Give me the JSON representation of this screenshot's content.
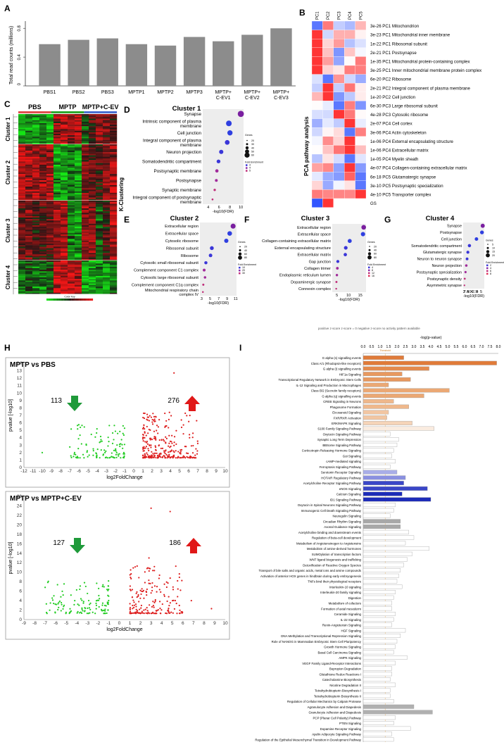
{
  "panel_labels": {
    "A": "A",
    "B": "B",
    "C": "C",
    "D": "D",
    "E": "E",
    "F": "F",
    "G": "G",
    "H": "H",
    "I": "I"
  },
  "panel_a": {
    "ylabel": "Total read counts (millions)",
    "yticks": [
      "0",
      "0.4",
      "0.8"
    ],
    "bars": [
      {
        "label": "PBS1",
        "value": 0.58
      },
      {
        "label": "PBS2",
        "value": 0.64
      },
      {
        "label": "PBS3",
        "value": 0.66
      },
      {
        "label": "MPTP1",
        "value": 0.58
      },
      {
        "label": "MPTP2",
        "value": 0.56
      },
      {
        "label": "MPTP3",
        "value": 0.68
      },
      {
        "label": "MPTP+\nC-EV1",
        "value": 0.62
      },
      {
        "label": "MPTP+\nC-EV2",
        "value": 0.71
      },
      {
        "label": "MPTP+\nC-EV3",
        "value": 0.8
      }
    ]
  },
  "panel_b": {
    "columns": [
      "PC1",
      "PC2",
      "PC3",
      "PC4",
      "PC5"
    ],
    "side_label": "PCA pathway analysis",
    "rows": [
      {
        "label": "3e-26 PC1 Mitochondrion",
        "pc": 0
      },
      {
        "label": "3e-23 PC1 Mitochondrial inner membrane",
        "pc": 0
      },
      {
        "label": "1e-22 PC1 Ribosomal subunit",
        "pc": 0
      },
      {
        "label": "2e-21 PC1 Postsynapse",
        "pc": 0
      },
      {
        "label": "1e-35 PC1 Mitochondrial protein-containing complex",
        "pc": 0
      },
      {
        "label": "3e-25 PC1 Inner mitochondrial membrane protein complex",
        "pc": 0
      },
      {
        "label": "6e-20 PC2 Ribosome",
        "pc": 1
      },
      {
        "label": "2e-21 PC2 Integral component of plasma membrane",
        "pc": 1
      },
      {
        "label": "1e-20 PC2 Cell junction",
        "pc": 1
      },
      {
        "label": "6e-30 PC3 Large ribosomal subunit",
        "pc": 2
      },
      {
        "label": "4e-28 PC3 Cytosolic ribosome",
        "pc": 2
      },
      {
        "label": "2e-07 PC4 Cell cortex",
        "pc": 3
      },
      {
        "label": "3e-06 PC4 Actin cytoskeleton",
        "pc": 3
      },
      {
        "label": "1e-06 PC4 External encapsulating structure",
        "pc": 3
      },
      {
        "label": "1e-06 PC4 Extracellular matrix",
        "pc": 3
      },
      {
        "label": "1e-05 PC4 Myelin sheath",
        "pc": 3
      },
      {
        "label": "4e-07 PC4 Collagen-containing extracellular matrix",
        "pc": 3
      },
      {
        "label": "6e-18 PC5 Glutamatergic synapse",
        "pc": 4
      },
      {
        "label": "3e-10 PC5 Postsynaptic specialization",
        "pc": 4
      },
      {
        "label": "4e-10 PC5 Transporter complex",
        "pc": 4
      },
      {
        "label": "GS",
        "pc": -1
      }
    ]
  },
  "panel_c": {
    "groups": [
      "PBS",
      "MPTP",
      "MPTP+C-EV"
    ],
    "clusters": [
      "Cluster 1",
      "Cluster 2",
      "Cluster 3",
      "Cluster 4"
    ],
    "colorkey": "Color Key"
  },
  "kclustering_label": "K-Clustering",
  "panel_d": {
    "title": "Cluster 1",
    "xlabel": "-log10(FDR)",
    "xticks": [
      "4",
      "6",
      "8",
      "10"
    ],
    "legend_genes": "Genes",
    "legend_fold": "Fold Enrichment",
    "gene_sizes": [
      "20",
      "30",
      "40",
      "50",
      "60"
    ],
    "fold_values": [
      "3",
      "4",
      "5"
    ],
    "terms": [
      {
        "label": "Synapse",
        "x": 10.0
      },
      {
        "label": "Intrinsic component of plasma\nmembrane",
        "x": 7.8
      },
      {
        "label": "Cell junction",
        "x": 8.0
      },
      {
        "label": "Integral component of plasma\nmembrane",
        "x": 7.5
      },
      {
        "label": "Neuron projection",
        "x": 6.4
      },
      {
        "label": "Somatodendritic compartment",
        "x": 5.9
      },
      {
        "label": "Postsynaptic membrane",
        "x": 5.6
      },
      {
        "label": "Postsynapse",
        "x": 5.5
      },
      {
        "label": "Synaptic membrane",
        "x": 5.2
      },
      {
        "label": "Integral component of postsynaptic\nmembrane",
        "x": 4.8
      }
    ]
  },
  "panel_e": {
    "title": "Cluster 2",
    "xlabel": "-log10(FDR)",
    "xticks": [
      "3",
      "5",
      "7",
      "9",
      "11"
    ],
    "legend_genes": "Genes",
    "legend_fold": "Fold Enrichment",
    "gene_sizes": [
      "20",
      "40",
      "60",
      "80"
    ],
    "fold_values": [
      "10",
      "20",
      "30"
    ],
    "terms": [
      {
        "label": "Extracellular region",
        "x": 10.4
      },
      {
        "label": "Extracellular space",
        "x": 9.6
      },
      {
        "label": "Cytosolic ribosome",
        "x": 8.8
      },
      {
        "label": "Ribosomal subunit",
        "x": 5.4
      },
      {
        "label": "Ribosome",
        "x": 5.1
      },
      {
        "label": "Cytosolic small ribosomal subunit",
        "x": 4.0
      },
      {
        "label": "Complement component C1 complex",
        "x": 3.6
      },
      {
        "label": "Cytosolic large ribosomal subunit",
        "x": 3.8
      },
      {
        "label": "Complement component C1q complex",
        "x": 3.4
      },
      {
        "label": "Mitochondrial respiratory chain\ncomplex IV",
        "x": 3.3
      }
    ]
  },
  "panel_f": {
    "title": "Cluster 3",
    "xlabel": "-log10(FDR)",
    "xticks": [
      "5",
      "10",
      "15"
    ],
    "legend_genes": "Genes",
    "legend_fold": "Fold Enrichment",
    "gene_sizes": [
      "20",
      "40",
      "60",
      "80"
    ],
    "fold_values": [
      "4",
      "8",
      "12",
      "16"
    ],
    "terms": [
      {
        "label": "Extracellular region",
        "x": 16.5
      },
      {
        "label": "Extracellular space",
        "x": 16.2
      },
      {
        "label": "Collagen-containing extracellular matrix",
        "x": 10.5
      },
      {
        "label": "External encapsulating structure",
        "x": 8.8
      },
      {
        "label": "Extracellular matrix",
        "x": 8.6
      },
      {
        "label": "Gap junction",
        "x": 5.4
      },
      {
        "label": "Collagen trimer",
        "x": 5.2
      },
      {
        "label": "Endoplasmic reticulum lumen",
        "x": 5.0
      },
      {
        "label": "Dopaminergic synapse",
        "x": 4.8
      },
      {
        "label": "Connexin complex",
        "x": 4.7
      }
    ]
  },
  "panel_g": {
    "title": "Cluster 4",
    "xlabel": "-log10(FDR)",
    "xticks": [
      "3",
      "7.5",
      "4",
      "0",
      "4",
      "2.5",
      "4",
      "5"
    ],
    "legend_genes": "Genes",
    "legend_fold": "Fold Enrichment",
    "gene_sizes": [
      "5",
      "10",
      "15",
      "20"
    ],
    "fold_values": [
      "2",
      "4",
      "6",
      "8"
    ],
    "terms": [
      {
        "label": "Synapse",
        "x": 4.95
      },
      {
        "label": "Postsynapse",
        "x": 4.9
      },
      {
        "label": "Cell junction",
        "x": 4.55
      },
      {
        "label": "Somatodendritic compartment",
        "x": 4.1
      },
      {
        "label": "Glutamatergic synapse",
        "x": 4.0
      },
      {
        "label": "Neuron to neuron synapse",
        "x": 3.95
      },
      {
        "label": "Neuron projection",
        "x": 3.9
      },
      {
        "label": "Postsynaptic specialization",
        "x": 3.85
      },
      {
        "label": "Postsynaptic density",
        "x": 3.8
      },
      {
        "label": "Asymmetric synapse",
        "x": 3.78
      }
    ]
  },
  "zscore_legend": "positive z-score   z-score = 0   negative z-score   no activity pattern available",
  "panel_h": {
    "plots": [
      {
        "title": "MPTP vs PBS",
        "down": "113",
        "up": "276",
        "ylabel": "pvalue [-log10]",
        "xlabel": "log2FoldChange",
        "xlim": [
          -12,
          10
        ],
        "ylim": [
          0,
          14
        ],
        "xticks": [
          "-12",
          "-11",
          "-10",
          "-9",
          "-8",
          "-7",
          "-6",
          "-5",
          "-4",
          "-3",
          "-2",
          "-1",
          "0",
          "1",
          "2",
          "3",
          "4",
          "5",
          "6",
          "7",
          "8",
          "9",
          "10"
        ],
        "yticks": [
          "0",
          "1",
          "2",
          "3",
          "4",
          "5",
          "6",
          "7",
          "8",
          "9",
          "10",
          "11",
          "12",
          "13",
          "14"
        ]
      },
      {
        "title": "MPTP vs MPTP+C-EV",
        "down": "127",
        "up": "186",
        "ylabel": "pvalue [-log10]",
        "xlabel": "log2FoldChange",
        "xlim": [
          -9,
          10
        ],
        "ylim": [
          0,
          26
        ],
        "xticks": [
          "-9",
          "-8",
          "-7",
          "-6",
          "-5",
          "-4",
          "-3",
          "-2",
          "-1",
          "0",
          "1",
          "2",
          "3",
          "4",
          "5",
          "6",
          "7",
          "8",
          "9",
          "10"
        ],
        "yticks": [
          "0",
          "2",
          "4",
          "6",
          "8",
          "10",
          "12",
          "14",
          "16",
          "18",
          "20",
          "22",
          "24",
          "26"
        ]
      }
    ]
  },
  "panel_i": {
    "axis_title": "-log(p-value)",
    "threshold": "Threshold",
    "xticks": [
      "0.0",
      "0.5",
      "1.0",
      "1.5",
      "2.0",
      "2.5",
      "3.0",
      "3.5",
      "4.0",
      "4.5",
      "5.0",
      "5.5",
      "6.0",
      "6.5",
      "7.0",
      "7.5",
      "8.0"
    ],
    "pathways": [
      {
        "label": "G alpha (s) signalling events",
        "v": 2.4,
        "c": "#e07b39"
      },
      {
        "label": "Class A/1 (Rhodopsin-like receptors)",
        "v": 7.9,
        "c": "#e07b39"
      },
      {
        "label": "G alpha (i) signalling events",
        "v": 3.9,
        "c": "#e38a4d"
      },
      {
        "label": "HIF1a Signaling",
        "v": 2.3,
        "c": "#e8995f"
      },
      {
        "label": "Transcriptional Regulatory Network in Embryonic Stem Cells",
        "v": 2.8,
        "c": "#e8995f"
      },
      {
        "label": "IL-12 Signaling and Production in Macrophages",
        "v": 1.5,
        "c": "#eba874"
      },
      {
        "label": "Class B/2 (Secretin family receptors)",
        "v": 5.1,
        "c": "#eba874"
      },
      {
        "label": "G alpha (q) signalling events",
        "v": 3.6,
        "c": "#eba874"
      },
      {
        "label": "CREB Signaling in Neurons",
        "v": 1.8,
        "c": "#efb88c"
      },
      {
        "label": "Phagosome Formation",
        "v": 2.7,
        "c": "#efb88c"
      },
      {
        "label": "Eicosanoid Signaling",
        "v": 1.5,
        "c": "#f2c6a2"
      },
      {
        "label": "FXR/RXR Activation",
        "v": 1.4,
        "c": "#f2c6a2"
      },
      {
        "label": "ERK/MAPK Signaling",
        "v": 2.9,
        "c": "#f5d4b8"
      },
      {
        "label": "S100 Family Signaling Pathway",
        "v": 4.2,
        "c": "#faece0"
      },
      {
        "label": "Oxytocin Signaling Pathway",
        "v": 1.6,
        "c": "#ffffff"
      },
      {
        "label": "Synaptic Long Term Depression",
        "v": 2.1,
        "c": "#ffffff"
      },
      {
        "label": "BBSome Signaling Pathway",
        "v": 2.0,
        "c": "#ffffff"
      },
      {
        "label": "Corticotropin Releasing Hormone Signaling",
        "v": 1.8,
        "c": "#ffffff"
      },
      {
        "label": "Gαi Signaling",
        "v": 1.7,
        "c": "#ffffff"
      },
      {
        "label": "cAMP-mediated signaling",
        "v": 1.9,
        "c": "#ffffff"
      },
      {
        "label": "Ferroptosis Signaling Pathway",
        "v": 1.6,
        "c": "#ffffff"
      },
      {
        "label": "Serotonin Receptor Signaling",
        "v": 2.0,
        "c": "#a9aee8"
      },
      {
        "label": "HOTAIR Regulatory Pathway",
        "v": 2.5,
        "c": "#8a90e0"
      },
      {
        "label": "Acetylcholine Receptor Signaling Pathway",
        "v": 2.4,
        "c": "#3a46c8"
      },
      {
        "label": "eNOS Signaling",
        "v": 3.8,
        "c": "#3a46c8"
      },
      {
        "label": "Calcium Signaling",
        "v": 2.3,
        "c": "#1d2cb8"
      },
      {
        "label": "ID1 Signaling Pathway",
        "v": 4.0,
        "c": "#1d2cb8"
      },
      {
        "label": "Oxytocin in Spinal Neurons Signaling Pathway",
        "v": 1.9,
        "c": "#ffffff"
      },
      {
        "label": "Immunogenic Cell Death Signaling Pathway",
        "v": 1.8,
        "c": "#ffffff"
      },
      {
        "label": "Neuregulin Signaling",
        "v": 1.6,
        "c": "#ffffff"
      },
      {
        "label": "Circadian Rhythm Signaling",
        "v": 2.2,
        "c": "#a8a8a8"
      },
      {
        "label": "Axonal Guidance Signaling",
        "v": 2.2,
        "c": "#a8a8a8"
      },
      {
        "label": "Acetylcholine binding and downstream events",
        "v": 2.7,
        "c": "#ffffff"
      },
      {
        "label": "Regulation of beta-cell development",
        "v": 3.0,
        "c": "#ffffff"
      },
      {
        "label": "Metabolism of Angiotensinogen to Angiotensins",
        "v": 2.5,
        "c": "#ffffff"
      },
      {
        "label": "Metabolism of amine-derived hormones",
        "v": 3.9,
        "c": "#ffffff"
      },
      {
        "label": "SUMOylation of transcription factors",
        "v": 2.9,
        "c": "#ffffff"
      },
      {
        "label": "WNT ligand biogenesis and trafficking",
        "v": 2.6,
        "c": "#ffffff"
      },
      {
        "label": "Detoxification of Reactive Oxygen Species",
        "v": 2.4,
        "c": "#ffffff"
      },
      {
        "label": "Transport of bile salts and organic acids, metal ions and amine compounds",
        "v": 2.2,
        "c": "#ffffff"
      },
      {
        "label": "Activation of anterior HOX genes in hindbrain during early embryogenesis",
        "v": 2.1,
        "c": "#ffffff"
      },
      {
        "label": "TNFs bind their physiological receptors",
        "v": 2.0,
        "c": "#ffffff"
      },
      {
        "label": "Interleukin-10 signaling",
        "v": 2.3,
        "c": "#ffffff"
      },
      {
        "label": "Interleukin-20 family signaling",
        "v": 1.9,
        "c": "#ffffff"
      },
      {
        "label": "Digestion",
        "v": 1.8,
        "c": "#ffffff"
      },
      {
        "label": "Metabolism of cofactors",
        "v": 1.7,
        "c": "#ffffff"
      },
      {
        "label": "Formation of axial mesoderm",
        "v": 1.7,
        "c": "#ffffff"
      },
      {
        "label": "Ceramide Signaling",
        "v": 1.9,
        "c": "#ffffff"
      },
      {
        "label": "IL-22 Signaling",
        "v": 1.8,
        "c": "#ffffff"
      },
      {
        "label": "Renin-Angiotensin Signaling",
        "v": 1.7,
        "c": "#ffffff"
      },
      {
        "label": "HGF Signaling",
        "v": 2.5,
        "c": "#ffffff"
      },
      {
        "label": "DNA Methylation and Transcriptional Repression Signaling",
        "v": 2.2,
        "c": "#ffffff"
      },
      {
        "label": "Role of NANOG in Mammalian Embryonic Stem Cell Pluripotency",
        "v": 2.0,
        "c": "#ffffff"
      },
      {
        "label": "Growth Hormone Signaling",
        "v": 1.9,
        "c": "#ffffff"
      },
      {
        "label": "Basal Cell Carcinoma Signaling",
        "v": 1.8,
        "c": "#ffffff"
      },
      {
        "label": "AMPK Signaling",
        "v": 2.6,
        "c": "#ffffff"
      },
      {
        "label": "VEGF Family Ligand-Receptor Interactions",
        "v": 1.9,
        "c": "#ffffff"
      },
      {
        "label": "Bupropion Degradation",
        "v": 1.7,
        "c": "#ffffff"
      },
      {
        "label": "Glutathione Redox Reactions I",
        "v": 1.7,
        "c": "#ffffff"
      },
      {
        "label": "Catecholamine Biosynthesis",
        "v": 1.6,
        "c": "#ffffff"
      },
      {
        "label": "Nicotine Degradation II",
        "v": 1.9,
        "c": "#ffffff"
      },
      {
        "label": "Tetrahydrobiopterin Biosynthesis I",
        "v": 1.6,
        "c": "#ffffff"
      },
      {
        "label": "Tetrahydrobiopterin Biosynthesis II",
        "v": 1.6,
        "c": "#ffffff"
      },
      {
        "label": "Regulation of Cellular Mechanics by Calpain Protease",
        "v": 1.8,
        "c": "#ffffff"
      },
      {
        "label": "Agranulocyte Adhesion and Diapedesis",
        "v": 3.0,
        "c": "#b0b0b0"
      },
      {
        "label": "Granulocyte Adhesion and Diapedesis",
        "v": 4.1,
        "c": "#b0b0b0"
      },
      {
        "label": "PCP (Planar Cell Polarity) Pathway",
        "v": 1.9,
        "c": "#ffffff"
      },
      {
        "label": "PTEN Signaling",
        "v": 1.8,
        "c": "#ffffff"
      },
      {
        "label": "Dopamine Receptor Signaling",
        "v": 2.8,
        "c": "#ffffff"
      },
      {
        "label": "Apelin Adipocyte Signaling Pathway",
        "v": 1.7,
        "c": "#ffffff"
      },
      {
        "label": "Regulation of the Epithelial Mesenchymal Transition in Development Pathway",
        "v": 1.8,
        "c": "#ffffff"
      }
    ]
  }
}
